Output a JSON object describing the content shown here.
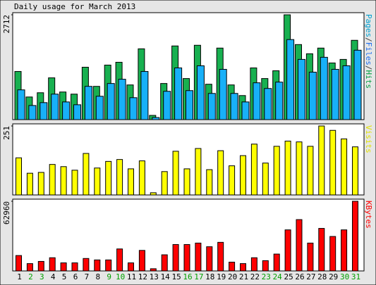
{
  "chart_data": [
    {
      "type": "bar",
      "title": "Daily usage for March 2013",
      "legend": [
        {
          "text": "Pages",
          "color": "#00a0d0"
        },
        {
          "text": "/",
          "color": "#404040"
        },
        {
          "text": "Files",
          "color": "#1e6ef0"
        },
        {
          "text": "/",
          "color": "#404040"
        },
        {
          "text": "Hits",
          "color": "#00a040"
        }
      ],
      "series": [
        {
          "name": "Hits",
          "color": "#18b050",
          "values": [
            1246,
            586,
            696,
            1081,
            715,
            660,
            1356,
            861,
            1411,
            1484,
            898,
            1832,
            110,
            935,
            1906,
            1063,
            1924,
            916,
            1851,
            898,
            623,
            1338,
            1063,
            1264,
            2712,
            1942,
            1704,
            1851,
            1466,
            1558,
            2052
          ]
        },
        {
          "name": "Files",
          "color": "#18b0f8",
          "values": [
            770,
            366,
            440,
            660,
            458,
            385,
            861,
            605,
            935,
            1045,
            568,
            1246,
            55,
            733,
            1338,
            751,
            1393,
            678,
            1301,
            678,
            458,
            953,
            806,
            971,
            2071,
            1558,
            1228,
            1613,
            1301,
            1393,
            1796
          ]
        }
      ],
      "ylim": [
        0,
        2712
      ],
      "yticks": [
        2712
      ]
    },
    {
      "type": "bar",
      "legend": [
        {
          "text": "Visits",
          "color": "#e0e000"
        }
      ],
      "series": [
        {
          "name": "Visits",
          "color": "#ffff00",
          "values": [
            135,
            79,
            82,
            111,
            103,
            90,
            151,
            98,
            122,
            129,
            95,
            124,
            8,
            85,
            159,
            95,
            169,
            92,
            161,
            106,
            143,
            185,
            116,
            177,
            196,
            193,
            177,
            251,
            235,
            204,
            175
          ]
        }
      ],
      "ylim": [
        0,
        251
      ],
      "yticks": [
        251
      ]
    },
    {
      "type": "bar",
      "legend": [
        {
          "text": "KBytes",
          "color": "#ff0000"
        }
      ],
      "series": [
        {
          "name": "KBytes",
          "color": "#ff0000",
          "values": [
            13918,
            6627,
            8615,
            11930,
            7290,
            7290,
            11267,
            9941,
            9941,
            19882,
            7290,
            18557,
            1988,
            14580,
            23859,
            23859,
            25184,
            21871,
            25847,
            7953,
            6627,
            11930,
            9278,
            15243,
            37113,
            46392,
            25184,
            38439,
            31149,
            37113,
            62960
          ]
        }
      ],
      "ylim": [
        0,
        62960
      ],
      "yticks": [
        62960
      ],
      "categories": [
        "1",
        "2",
        "3",
        "4",
        "5",
        "6",
        "7",
        "8",
        "9",
        "10",
        "11",
        "12",
        "13",
        "14",
        "15",
        "16",
        "17",
        "18",
        "19",
        "20",
        "21",
        "22",
        "23",
        "24",
        "25",
        "26",
        "27",
        "28",
        "29",
        "30",
        "31"
      ],
      "category_colors": [
        "#000000",
        "#00a000",
        "#00a000",
        "#000000",
        "#000000",
        "#000000",
        "#000000",
        "#000000",
        "#00a000",
        "#00a000",
        "#000000",
        "#000000",
        "#000000",
        "#000000",
        "#000000",
        "#00a000",
        "#00a000",
        "#000000",
        "#000000",
        "#000000",
        "#000000",
        "#000000",
        "#00a000",
        "#00a000",
        "#000000",
        "#000000",
        "#000000",
        "#000000",
        "#000000",
        "#00a000",
        "#00a000"
      ]
    }
  ]
}
